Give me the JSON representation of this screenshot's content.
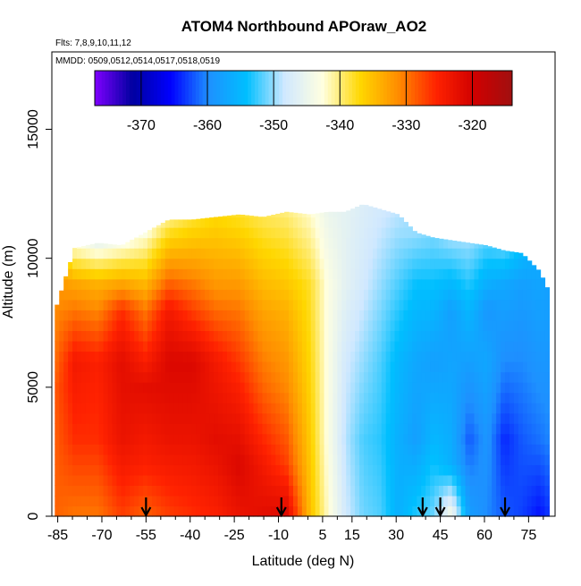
{
  "chart_data": {
    "type": "heatmap",
    "title": "ATOM4 Northbound APOraw_AO2",
    "flights_note": "Flts: 7,8,9,10,11,12",
    "dates_note": "MMDD: 0509,0512,0514,0517,0518,0519",
    "xlabel": "Latitude (deg N)",
    "ylabel": "Altitude (m)",
    "xlim": [
      -87,
      84
    ],
    "ylim": [
      0,
      18000
    ],
    "x_ticks": [
      -85,
      -70,
      -55,
      -40,
      -25,
      -10,
      5,
      15,
      30,
      45,
      60,
      75
    ],
    "x_tick_labels": [
      "-85",
      "-70",
      "-55",
      "-40",
      "-25",
      "-10",
      "5",
      "15",
      "30",
      "45",
      "60",
      "75"
    ],
    "y_ticks": [
      0,
      5000,
      10000,
      15000
    ],
    "y_tick_labels": [
      "0",
      "5000",
      "10000",
      "15000"
    ],
    "colorbar": {
      "range": [
        -377,
        -314
      ],
      "ticks": [
        -370,
        -360,
        -350,
        -340,
        -330,
        -320
      ],
      "tick_labels": [
        "-370",
        "-360",
        "-350",
        "-340",
        "-330",
        "-320"
      ],
      "colors": [
        "#7f00ff",
        "#0000a0",
        "#0000ff",
        "#1e90ff",
        "#00bfff",
        "#d0e8ff",
        "#ffffe0",
        "#ffd700",
        "#ff8c00",
        "#ff2200",
        "#d00000",
        "#a01010"
      ]
    },
    "airport_markers_lat": [
      -55,
      -9,
      39,
      45,
      67
    ],
    "columns": [
      {
        "lat": -86,
        "top": 8200,
        "profile": [
          [
            0,
            -329
          ],
          [
            5000,
            -328
          ],
          [
            10000,
            -333
          ]
        ]
      },
      {
        "lat": -80,
        "top": 10400,
        "profile": [
          [
            0,
            -330
          ],
          [
            3000,
            -326
          ],
          [
            6000,
            -324
          ],
          [
            9000,
            -333
          ],
          [
            10400,
            -342
          ]
        ]
      },
      {
        "lat": -72,
        "top": 10600,
        "profile": [
          [
            0,
            -330
          ],
          [
            3000,
            -326
          ],
          [
            6000,
            -325
          ],
          [
            9000,
            -334
          ],
          [
            10600,
            -345
          ]
        ]
      },
      {
        "lat": -64,
        "top": 10500,
        "profile": [
          [
            0,
            -327
          ],
          [
            3000,
            -323
          ],
          [
            6000,
            -322
          ],
          [
            8000,
            -326
          ],
          [
            10500,
            -343
          ]
        ]
      },
      {
        "lat": -56,
        "top": 11000,
        "profile": [
          [
            0,
            -329
          ],
          [
            2000,
            -325
          ],
          [
            5000,
            -322
          ],
          [
            8000,
            -330
          ],
          [
            11000,
            -343
          ]
        ]
      },
      {
        "lat": -48,
        "top": 11500,
        "profile": [
          [
            0,
            -327
          ],
          [
            3000,
            -323
          ],
          [
            6000,
            -321
          ],
          [
            8000,
            -324
          ],
          [
            11500,
            -340
          ]
        ]
      },
      {
        "lat": -40,
        "top": 11500,
        "profile": [
          [
            0,
            -326
          ],
          [
            3000,
            -323
          ],
          [
            6000,
            -321
          ],
          [
            9000,
            -330
          ],
          [
            11500,
            -338
          ]
        ]
      },
      {
        "lat": -32,
        "top": 11600,
        "profile": [
          [
            0,
            -325
          ],
          [
            3000,
            -322
          ],
          [
            6000,
            -324
          ],
          [
            9000,
            -332
          ],
          [
            11600,
            -337
          ]
        ]
      },
      {
        "lat": -24,
        "top": 11700,
        "profile": [
          [
            0,
            -323
          ],
          [
            2000,
            -321
          ],
          [
            5000,
            -325
          ],
          [
            8000,
            -330
          ],
          [
            11700,
            -338
          ]
        ]
      },
      {
        "lat": -16,
        "top": 11600,
        "profile": [
          [
            0,
            -322
          ],
          [
            2000,
            -324
          ],
          [
            5000,
            -329
          ],
          [
            8000,
            -333
          ],
          [
            11600,
            -339
          ]
        ]
      },
      {
        "lat": -8,
        "top": 11800,
        "profile": [
          [
            0,
            -321
          ],
          [
            2000,
            -327
          ],
          [
            5000,
            -331
          ],
          [
            8000,
            -334
          ],
          [
            11800,
            -340
          ]
        ]
      },
      {
        "lat": 0,
        "top": 11700,
        "profile": [
          [
            0,
            -335
          ],
          [
            3000,
            -336
          ],
          [
            6000,
            -337
          ],
          [
            9000,
            -338
          ],
          [
            11700,
            -342
          ]
        ]
      },
      {
        "lat": 6,
        "top": 11800,
        "profile": [
          [
            0,
            -342
          ],
          [
            3000,
            -343
          ],
          [
            6000,
            -343
          ],
          [
            9000,
            -343
          ],
          [
            11800,
            -345
          ]
        ]
      },
      {
        "lat": 12,
        "top": 11800,
        "profile": [
          [
            0,
            -348
          ],
          [
            3000,
            -349
          ],
          [
            6000,
            -348
          ],
          [
            9000,
            -346
          ],
          [
            11800,
            -346
          ]
        ]
      },
      {
        "lat": 18,
        "top": 12100,
        "profile": [
          [
            0,
            -351
          ],
          [
            3000,
            -352
          ],
          [
            6000,
            -350
          ],
          [
            9000,
            -348
          ],
          [
            12100,
            -347
          ]
        ]
      },
      {
        "lat": 24,
        "top": 11900,
        "profile": [
          [
            0,
            -352
          ],
          [
            3000,
            -353
          ],
          [
            6000,
            -352
          ],
          [
            9000,
            -350
          ],
          [
            11900,
            -348
          ]
        ]
      },
      {
        "lat": 30,
        "top": 11700,
        "profile": [
          [
            0,
            -356
          ],
          [
            3000,
            -356
          ],
          [
            6000,
            -355
          ],
          [
            9000,
            -352
          ],
          [
            11700,
            -349
          ]
        ]
      },
      {
        "lat": 36,
        "top": 11000,
        "profile": [
          [
            0,
            -353
          ],
          [
            3000,
            -358
          ],
          [
            6000,
            -357
          ],
          [
            9000,
            -354
          ],
          [
            11000,
            -350
          ]
        ]
      },
      {
        "lat": 42,
        "top": 10800,
        "profile": [
          [
            0,
            -351
          ],
          [
            3000,
            -355
          ],
          [
            6000,
            -358
          ],
          [
            9000,
            -354
          ],
          [
            10800,
            -351
          ]
        ]
      },
      {
        "lat": 48,
        "top": 10700,
        "profile": [
          [
            0,
            -343
          ],
          [
            2000,
            -356
          ],
          [
            5000,
            -357
          ],
          [
            8000,
            -358
          ],
          [
            10700,
            -350
          ]
        ]
      },
      {
        "lat": 54,
        "top": 10600,
        "profile": [
          [
            0,
            -358
          ],
          [
            3000,
            -362
          ],
          [
            6000,
            -358
          ],
          [
            8000,
            -355
          ],
          [
            10600,
            -350
          ]
        ]
      },
      {
        "lat": 60,
        "top": 10500,
        "profile": [
          [
            0,
            -360
          ],
          [
            3000,
            -359
          ],
          [
            6000,
            -357
          ],
          [
            8000,
            -359
          ],
          [
            10500,
            -352
          ]
        ]
      },
      {
        "lat": 66,
        "top": 10300,
        "profile": [
          [
            0,
            -362
          ],
          [
            3000,
            -364
          ],
          [
            6000,
            -360
          ],
          [
            9000,
            -357
          ],
          [
            10300,
            -352
          ]
        ]
      },
      {
        "lat": 72,
        "top": 10200,
        "profile": [
          [
            0,
            -363
          ],
          [
            3000,
            -362
          ],
          [
            6000,
            -360
          ],
          [
            9000,
            -358
          ],
          [
            10200,
            -355
          ]
        ]
      },
      {
        "lat": 78,
        "top": 9500,
        "profile": [
          [
            0,
            -365
          ],
          [
            3000,
            -361
          ],
          [
            6000,
            -359
          ],
          [
            9500,
            -357
          ]
        ]
      },
      {
        "lat": 82,
        "top": 8500,
        "profile": [
          [
            0,
            -363
          ],
          [
            3000,
            -360
          ],
          [
            6000,
            -359
          ],
          [
            8500,
            -358
          ]
        ]
      }
    ]
  }
}
